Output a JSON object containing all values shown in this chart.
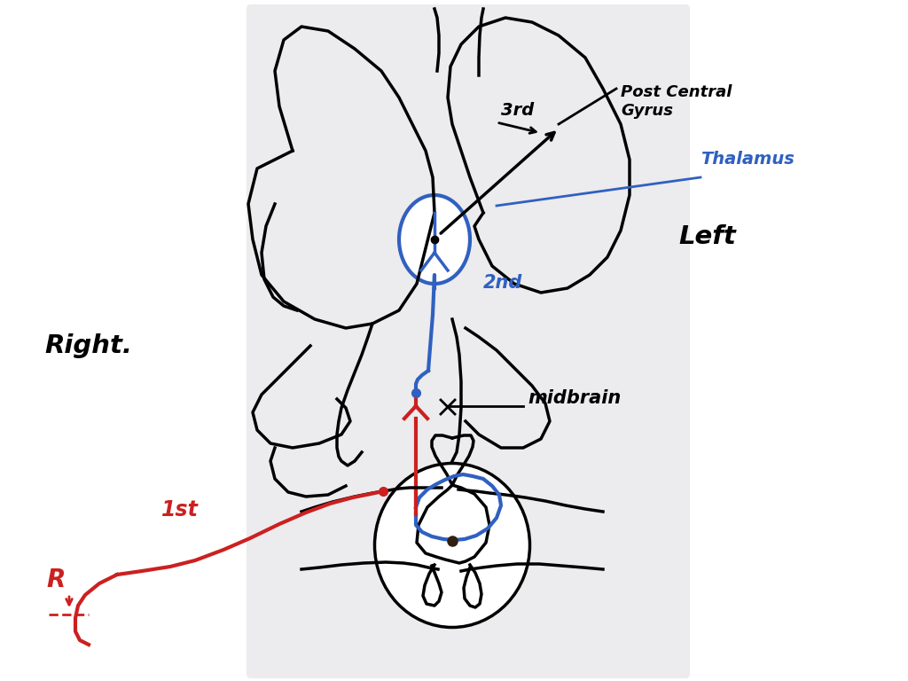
{
  "bg_color_upper": "#ecebed",
  "bg_color_lower": "#ecebed",
  "line_color": "black",
  "blue_color": "#3060c0",
  "red_color": "#cc2020",
  "labels": {
    "post_central_gyrus": "Post Central\nGyrus",
    "thalamus": "Thalamus",
    "left": "Left",
    "right": "Right.",
    "midbrain": "midbrain",
    "first": "1st",
    "second": "2nd",
    "third": "3rd",
    "R": "R"
  }
}
